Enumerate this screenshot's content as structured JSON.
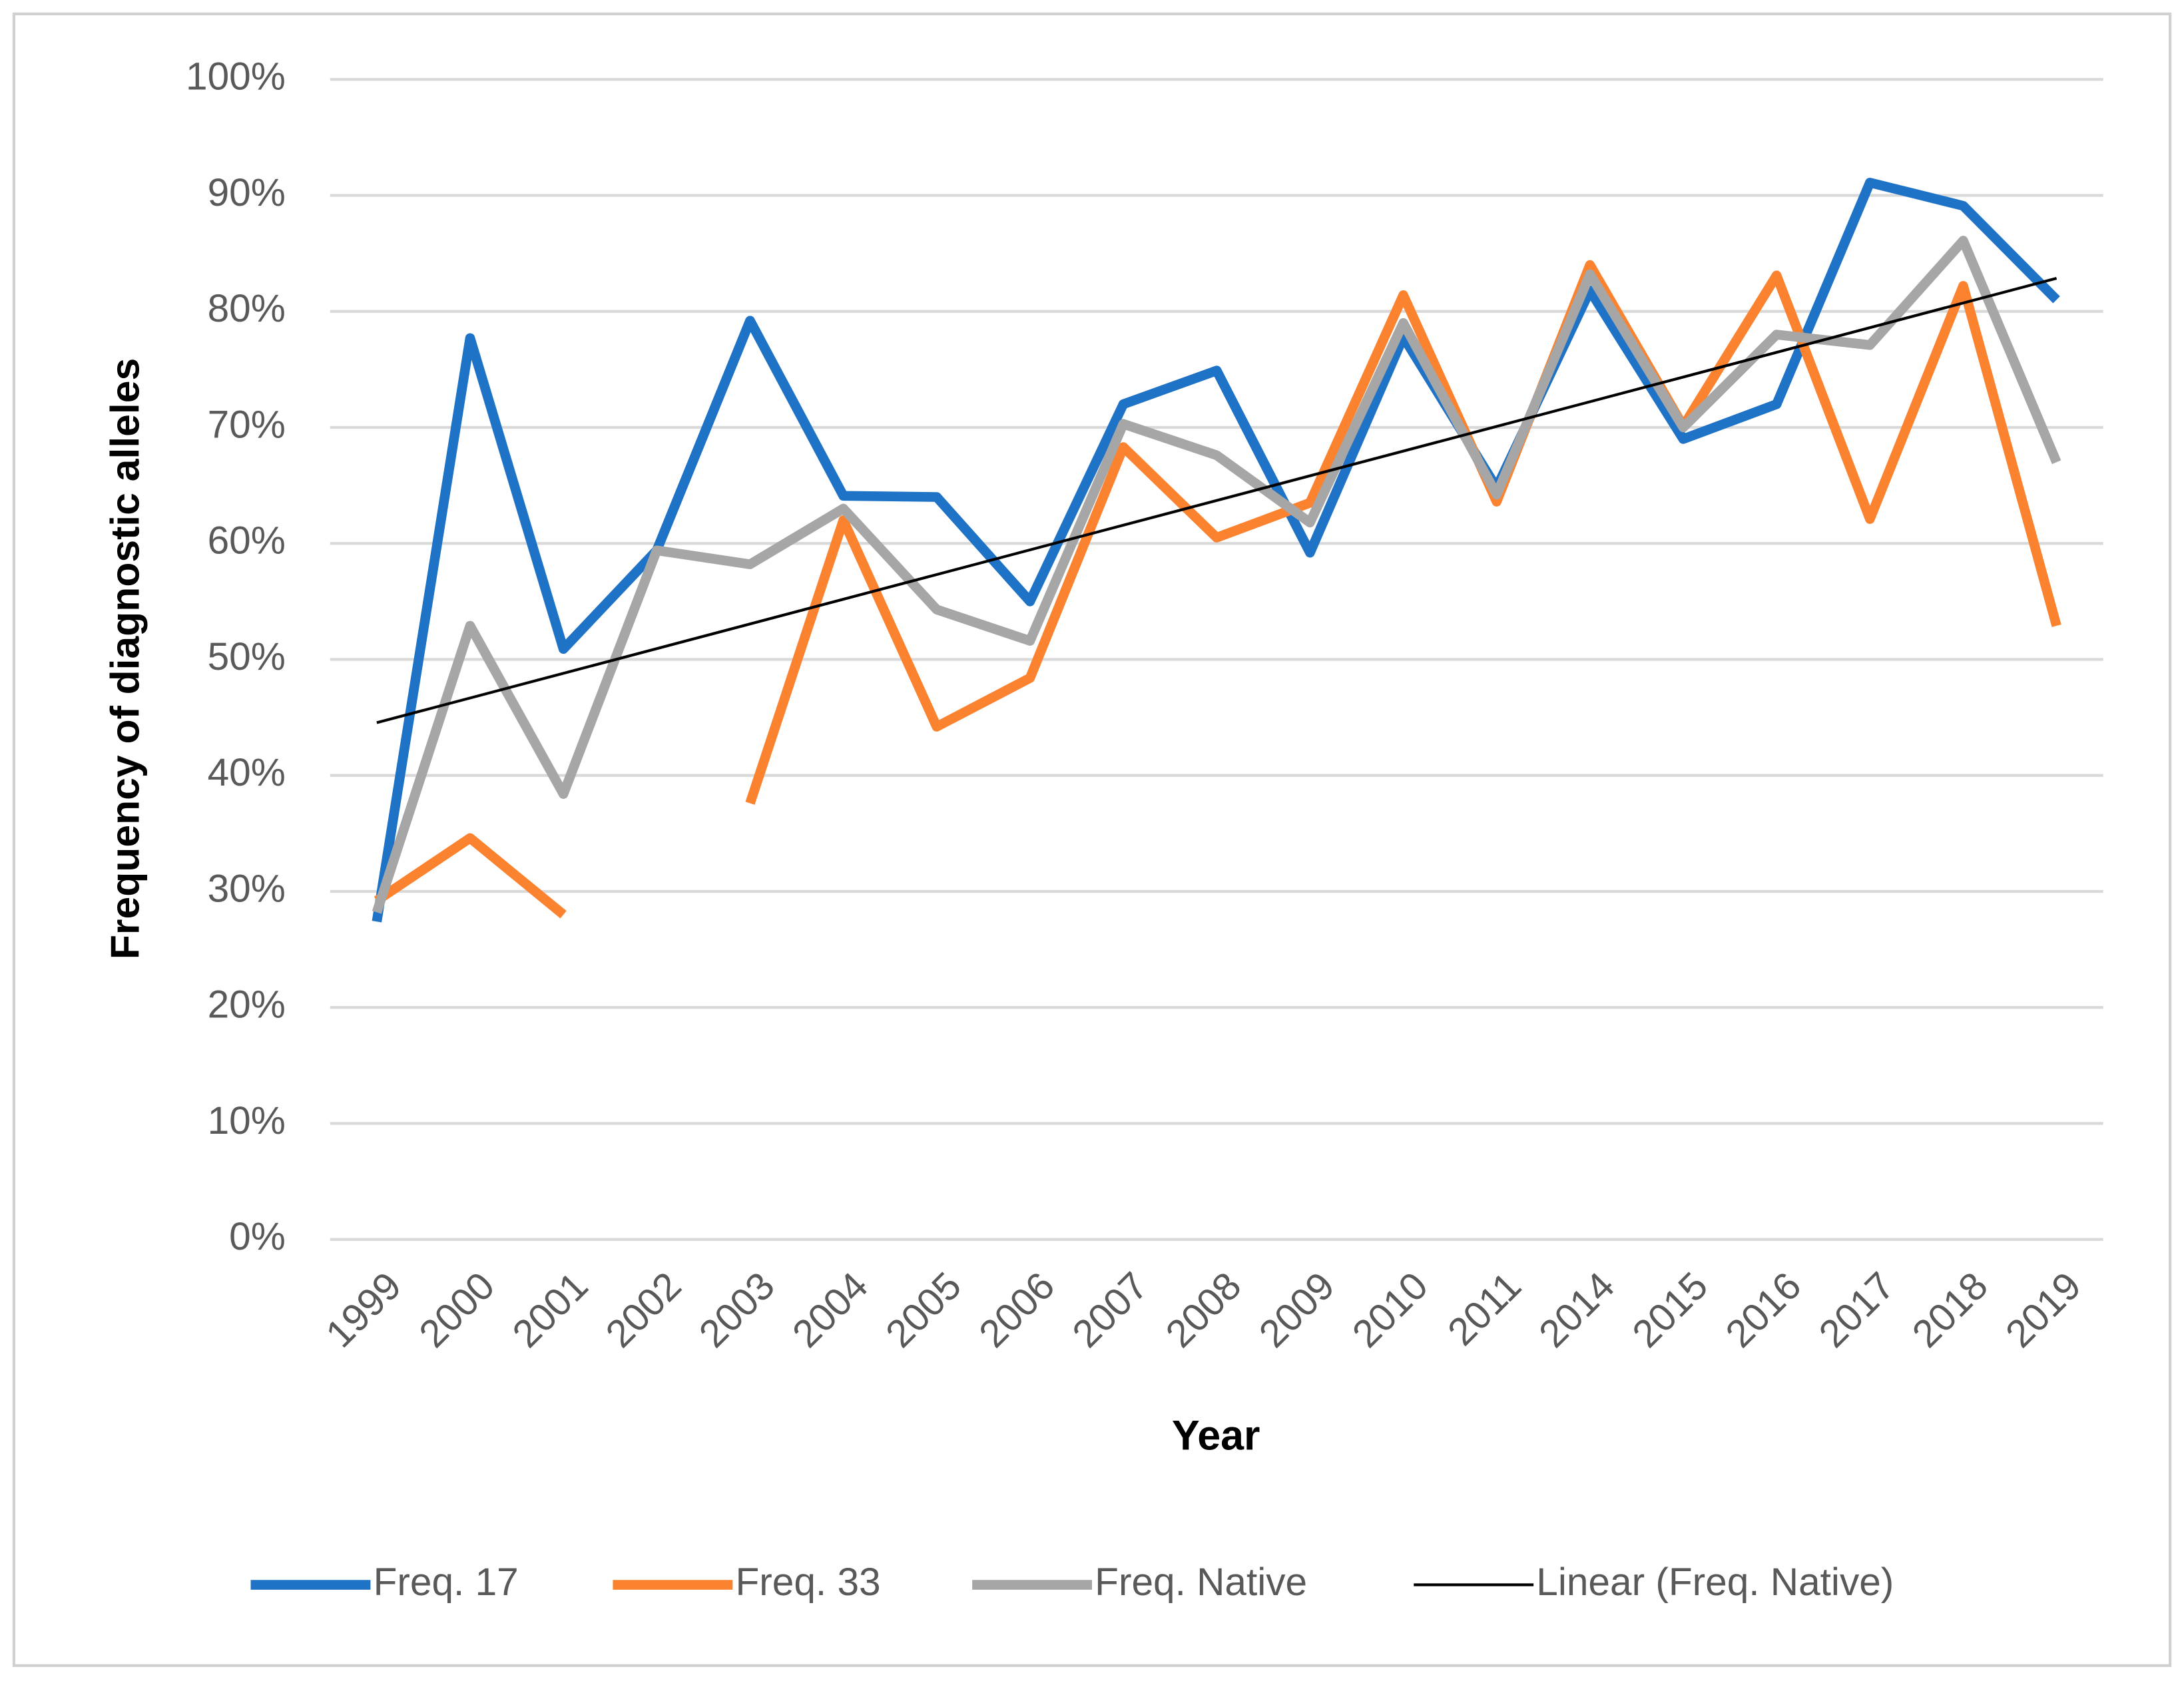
{
  "chart_data": {
    "type": "line",
    "y_label": "Frequency of diagnostic alleles",
    "x_label": "Year",
    "categories": [
      "1999",
      "2000",
      "2001",
      "2002",
      "2003",
      "2004",
      "2005",
      "2006",
      "2007",
      "2008",
      "2009",
      "2010",
      "2011",
      "2014",
      "2015",
      "2016",
      "2017",
      "2018",
      "2019"
    ],
    "series": [
      {
        "name": "Freq. 17",
        "color": "#1f73c6",
        "values": [
          27.4,
          77.7,
          50.9,
          59.4,
          79.2,
          64.1,
          64,
          55,
          72,
          74.9,
          59.2,
          77.8,
          64.8,
          81.8,
          69,
          72,
          91.1,
          89.1,
          81
        ]
      },
      {
        "name": "Freq. 33",
        "color": "#fb8330",
        "values": [
          29.2,
          34.6,
          28,
          null,
          37.6,
          62,
          44.2,
          48.4,
          68.3,
          60.5,
          63.5,
          81.4,
          63.6,
          84,
          70.1,
          83.1,
          62.1,
          82.2,
          52.9
        ]
      },
      {
        "name": "Freq. Native",
        "color": "#a6a6a6",
        "values": [
          28.2,
          52.9,
          38.4,
          59.4,
          58.2,
          63,
          54.3,
          51.6,
          70.3,
          67.6,
          61.8,
          79,
          64.2,
          83.2,
          70,
          78,
          77.1,
          86.1,
          67
        ]
      }
    ],
    "trendline": {
      "name": "Linear (Freq. Native)",
      "color": "#000000",
      "of": 2
    },
    "ylim": [
      0,
      100
    ],
    "yticks": [
      {
        "value": 0,
        "label": "0%"
      },
      {
        "value": 10,
        "label": "10%"
      },
      {
        "value": 20,
        "label": "20%"
      },
      {
        "value": 30,
        "label": "30%"
      },
      {
        "value": 40,
        "label": "40%"
      },
      {
        "value": 50,
        "label": "50%"
      },
      {
        "value": 60,
        "label": "60%"
      },
      {
        "value": 70,
        "label": "70%"
      },
      {
        "value": 80,
        "label": "80%"
      },
      {
        "value": 90,
        "label": "90%"
      },
      {
        "value": 100,
        "label": "100%"
      }
    ],
    "grid": true,
    "legend": "bottom"
  }
}
